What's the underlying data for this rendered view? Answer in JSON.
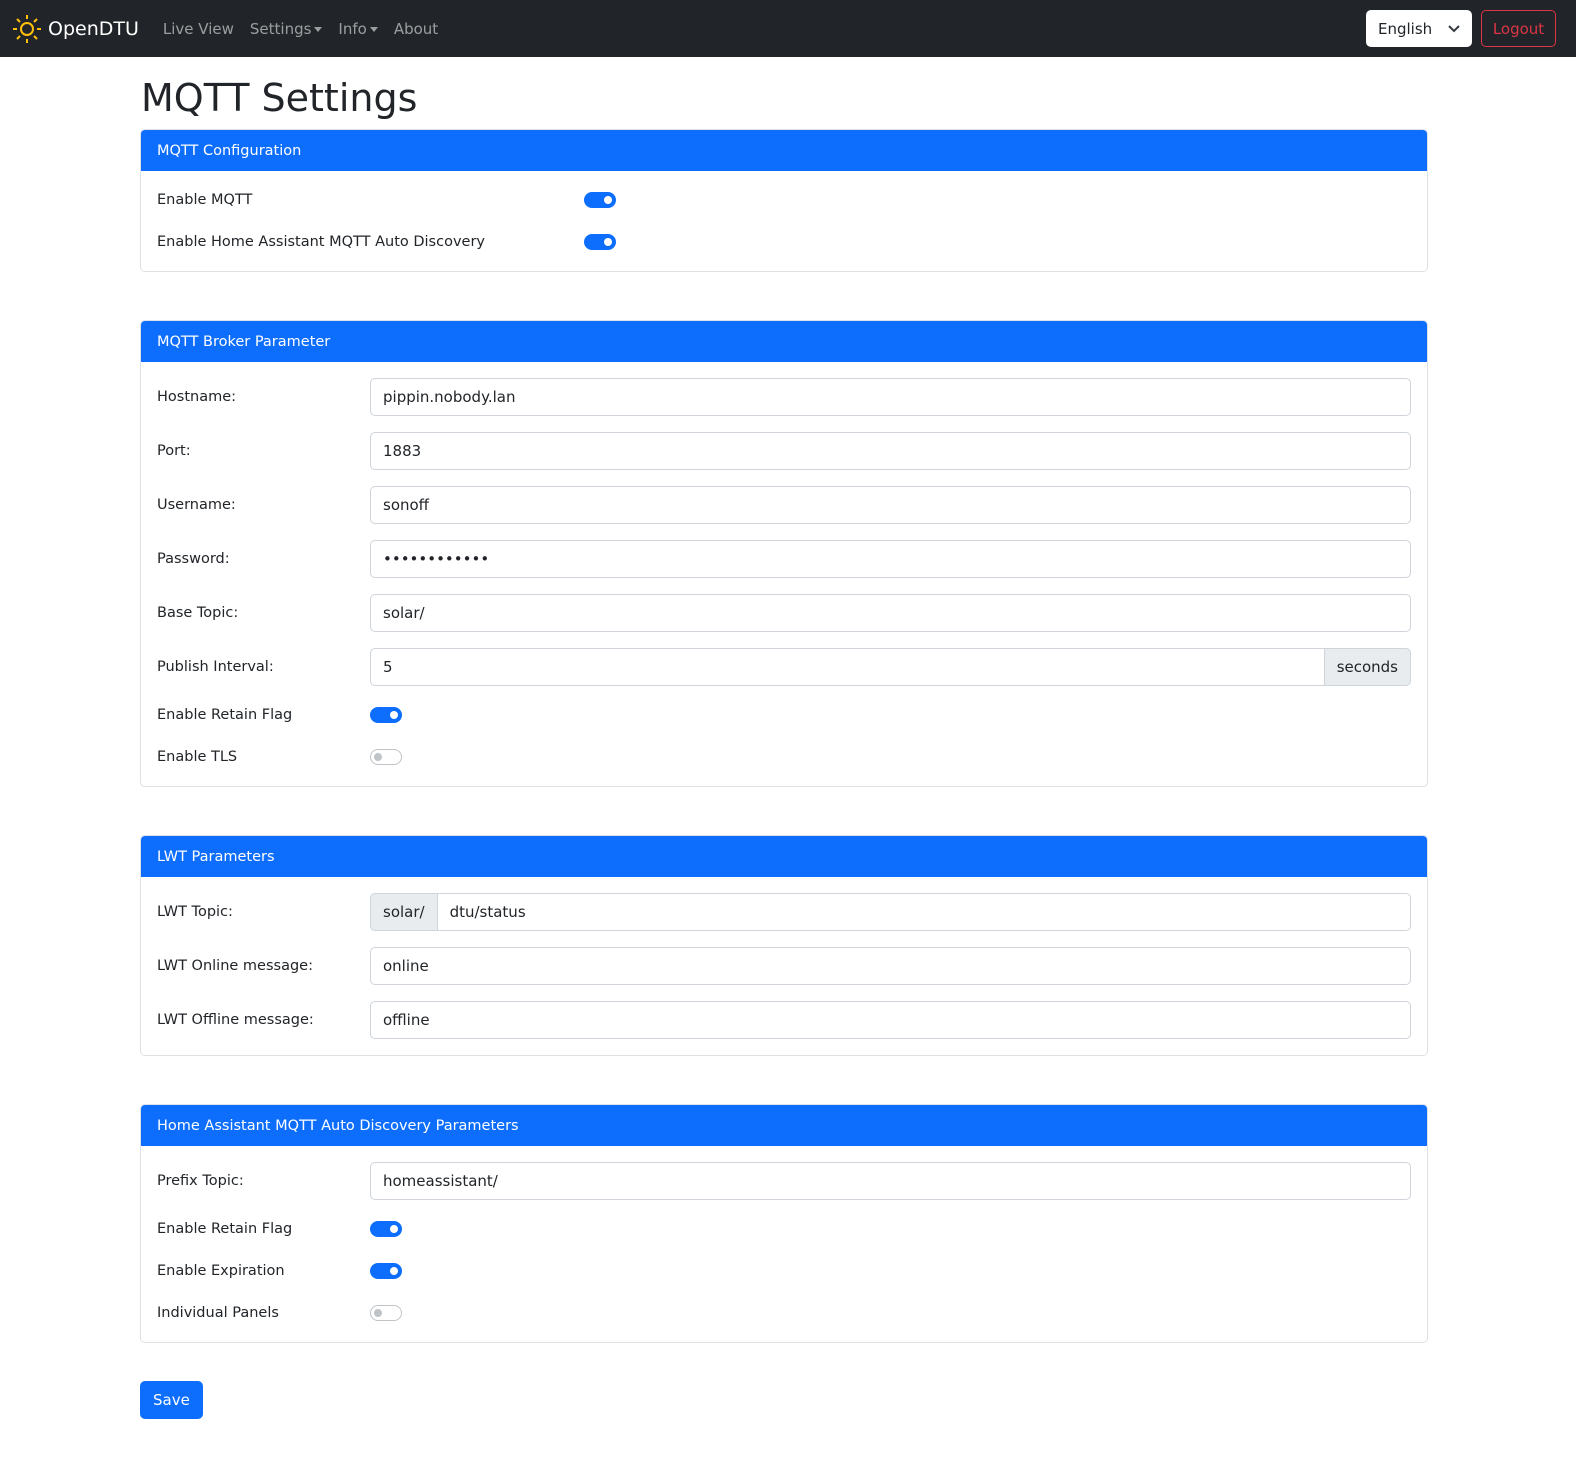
{
  "nav": {
    "brand": "OpenDTU",
    "items": [
      {
        "label": "Live View"
      },
      {
        "label": "Settings",
        "dropdown": true
      },
      {
        "label": "Info",
        "dropdown": true
      },
      {
        "label": "About"
      }
    ],
    "language": "English",
    "logout": "Logout"
  },
  "page_title": "MQTT Settings",
  "config": {
    "header": "MQTT Configuration",
    "enable_mqtt": {
      "label": "Enable MQTT",
      "on": true
    },
    "enable_ha": {
      "label": "Enable Home Assistant MQTT Auto Discovery",
      "on": true
    }
  },
  "broker": {
    "header": "MQTT Broker Parameter",
    "hostname": {
      "label": "Hostname:",
      "value": "pippin.nobody.lan"
    },
    "port": {
      "label": "Port:",
      "value": "1883"
    },
    "username": {
      "label": "Username:",
      "value": "sonoff"
    },
    "password": {
      "label": "Password:",
      "value": "••••••••••••"
    },
    "base_topic": {
      "label": "Base Topic:",
      "value": "solar/"
    },
    "interval": {
      "label": "Publish Interval:",
      "value": "5",
      "unit": "seconds"
    },
    "retain": {
      "label": "Enable Retain Flag",
      "on": true
    },
    "tls": {
      "label": "Enable TLS",
      "on": false
    }
  },
  "lwt": {
    "header": "LWT Parameters",
    "topic": {
      "label": "LWT Topic:",
      "prefix": "solar/",
      "value": "dtu/status"
    },
    "online": {
      "label": "LWT Online message:",
      "value": "online"
    },
    "offline": {
      "label": "LWT Offline message:",
      "value": "offline"
    }
  },
  "ha": {
    "header": "Home Assistant MQTT Auto Discovery Parameters",
    "prefix": {
      "label": "Prefix Topic:",
      "value": "homeassistant/"
    },
    "retain": {
      "label": "Enable Retain Flag",
      "on": true
    },
    "expiration": {
      "label": "Enable Expiration",
      "on": true
    },
    "panels": {
      "label": "Individual Panels",
      "on": false
    }
  },
  "save": "Save",
  "colors": {
    "primary": "#0d6efd",
    "navbar": "#212529",
    "danger": "#dc3545",
    "sun": "#ffc107"
  }
}
